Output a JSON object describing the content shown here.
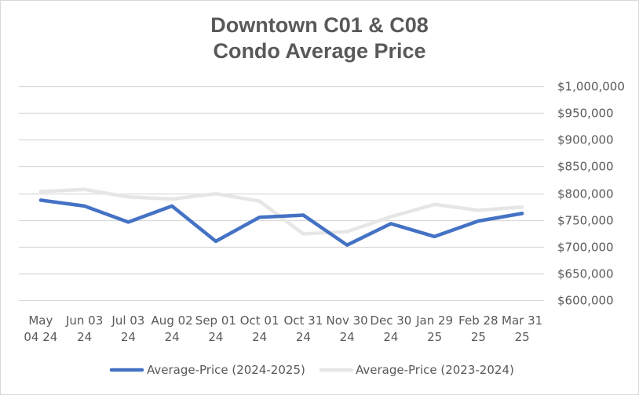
{
  "chart_data": {
    "type": "line",
    "title": "Downtown C01 & C08",
    "subtitle": "Condo Average Price",
    "xlabel": "",
    "ylabel": "",
    "categories": [
      [
        "May",
        "04 24"
      ],
      [
        "Jun 03",
        "24"
      ],
      [
        "Jul 03",
        "24"
      ],
      [
        "Aug 02",
        "24"
      ],
      [
        "Sep 01",
        "24"
      ],
      [
        "Oct 01",
        "24"
      ],
      [
        "Oct 31",
        "24"
      ],
      [
        "Nov 30",
        "24"
      ],
      [
        "Dec 30",
        "24"
      ],
      [
        "Jan 29",
        "25"
      ],
      [
        "Feb 28",
        "25"
      ],
      [
        "Mar 31",
        "25"
      ]
    ],
    "series": [
      {
        "name": "Average-Price (2024-2025)",
        "color": "#4472c4",
        "values": [
          787000,
          776000,
          746000,
          776000,
          710000,
          755000,
          759000,
          703000,
          743000,
          719000,
          748000,
          762000
        ]
      },
      {
        "name": "Average-Price (2023-2024)",
        "color": "#e7e6e6",
        "values": [
          803000,
          807000,
          793000,
          789000,
          799000,
          785000,
          724000,
          728000,
          756000,
          779000,
          768000,
          774000
        ]
      }
    ],
    "ylim": [
      600000,
      1000000
    ],
    "yticks": [
      1000000,
      950000,
      900000,
      850000,
      800000,
      750000,
      700000,
      650000,
      600000
    ],
    "ytick_labels": [
      "$1,000,000",
      "$950,000",
      "$900,000",
      "$850,000",
      "$800,000",
      "$750,000",
      "$700,000",
      "$650,000",
      "$600,000"
    ],
    "y_axis_side": "right",
    "grid": true,
    "gridline_color": "#d9d9d9",
    "legend_position": "bottom"
  }
}
